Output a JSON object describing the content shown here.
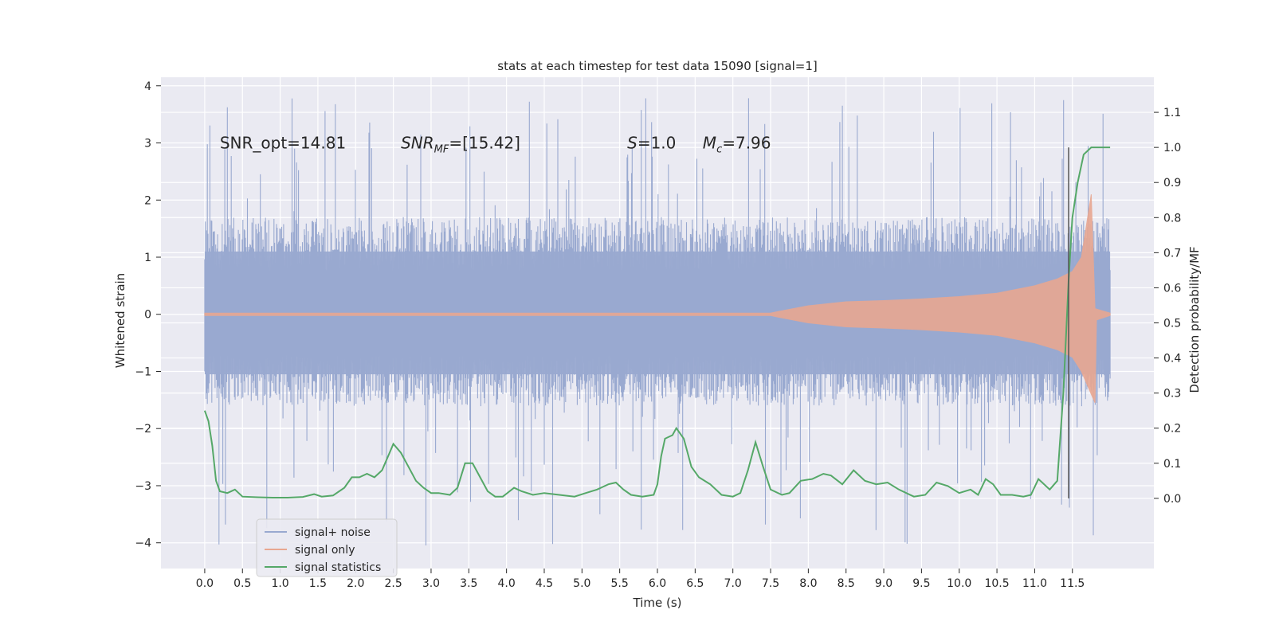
{
  "chart_data": {
    "type": "line",
    "title": "stats at each timestep for test data 15090 [signal=1]",
    "xlabel": "Time (s)",
    "ylabel": "Whitened strain",
    "ylabel_right": "Detection probability/MF",
    "xlim": [
      -0.58,
      12.58
    ],
    "ylim": [
      -4.45,
      4.15
    ],
    "ylim_right": [
      -0.2,
      1.2
    ],
    "grid": true,
    "x_ticks": [
      0.0,
      0.5,
      1.0,
      1.5,
      2.0,
      2.5,
      3.0,
      3.5,
      4.0,
      4.5,
      5.0,
      5.5,
      6.0,
      6.5,
      7.0,
      7.5,
      8.0,
      8.5,
      9.0,
      9.5,
      10.0,
      10.5,
      11.0,
      11.5
    ],
    "x_tick_labels": [
      "0.0",
      "0.5",
      "1.0",
      "1.5",
      "2.0",
      "2.5",
      "3.0",
      "3.5",
      "4.0",
      "4.5",
      "5.0",
      "5.5",
      "6.0",
      "6.5",
      "7.0",
      "7.5",
      "8.0",
      "8.5",
      "9.0",
      "9.5",
      "10.0",
      "10.5",
      "11.0",
      "11.5"
    ],
    "y_ticks": [
      -4,
      -3,
      -2,
      -1,
      0,
      1,
      2,
      3,
      4
    ],
    "y_tick_labels": [
      "−4",
      "−3",
      "−2",
      "−1",
      "0",
      "1",
      "2",
      "3",
      "4"
    ],
    "y2_ticks": [
      0.0,
      0.1,
      0.2,
      0.3,
      0.4,
      0.5,
      0.6,
      0.7,
      0.8,
      0.9,
      1.0,
      1.1
    ],
    "y2_tick_labels": [
      "0.0",
      "0.1",
      "0.2",
      "0.3",
      "0.4",
      "0.5",
      "0.6",
      "0.7",
      "0.8",
      "0.9",
      "1.0",
      "1.1"
    ],
    "annotations": [
      {
        "text": "SNR_opt=14.81",
        "x": 0.2,
        "y": 3.0
      },
      {
        "text": "SNR",
        "sub": "MF",
        "suffix": "=[15.42]",
        "x": 2.6,
        "y": 3.0
      },
      {
        "text": "S",
        "suffix": "=1.0",
        "x": 5.6,
        "y": 3.0
      },
      {
        "text": "M",
        "sub": "c",
        "suffix": "=7.96",
        "x": 6.6,
        "y": 3.0
      }
    ],
    "vline": {
      "x": 11.45,
      "y_range": [
        0.0,
        1.0
      ]
    },
    "series": [
      {
        "name": "signal+ noise",
        "axis": "left",
        "color": "#99a9d0",
        "description": "whitened strain noise spanning 0 to 12 s",
        "t_start": 0.0,
        "t_end": 12.0,
        "envelope": {
          "typical_max": 1.7,
          "typical_min": -1.6,
          "peak_max": 3.8,
          "peak_min": -4.1
        }
      },
      {
        "name": "signal only",
        "axis": "left",
        "color": "#e8a791",
        "t_start": 0.0,
        "t_end": 12.0,
        "envelope_points": [
          [
            0.0,
            0.02
          ],
          [
            7.5,
            0.02
          ],
          [
            7.6,
            0.05
          ],
          [
            8.0,
            0.15
          ],
          [
            8.5,
            0.22
          ],
          [
            9.0,
            0.24
          ],
          [
            9.5,
            0.27
          ],
          [
            10.0,
            0.31
          ],
          [
            10.5,
            0.37
          ],
          [
            11.0,
            0.5
          ],
          [
            11.3,
            0.62
          ],
          [
            11.5,
            0.75
          ],
          [
            11.62,
            1.0
          ],
          [
            11.75,
            2.1
          ],
          [
            11.8,
            0.1
          ],
          [
            12.0,
            0.02
          ]
        ],
        "envelope_points_neg": [
          [
            0.0,
            -0.02
          ],
          [
            7.5,
            -0.02
          ],
          [
            7.6,
            -0.05
          ],
          [
            8.0,
            -0.15
          ],
          [
            8.5,
            -0.22
          ],
          [
            9.0,
            -0.24
          ],
          [
            9.5,
            -0.27
          ],
          [
            10.0,
            -0.31
          ],
          [
            10.5,
            -0.37
          ],
          [
            11.0,
            -0.5
          ],
          [
            11.3,
            -0.62
          ],
          [
            11.5,
            -0.75
          ],
          [
            11.62,
            -1.0
          ],
          [
            11.8,
            -1.55
          ],
          [
            11.82,
            -0.1
          ],
          [
            12.0,
            -0.02
          ]
        ]
      },
      {
        "name": "signal statistics",
        "axis": "right",
        "color": "#55a868",
        "points": [
          [
            0.0,
            0.25
          ],
          [
            0.05,
            0.22
          ],
          [
            0.1,
            0.15
          ],
          [
            0.15,
            0.05
          ],
          [
            0.2,
            0.02
          ],
          [
            0.3,
            0.015
          ],
          [
            0.4,
            0.025
          ],
          [
            0.5,
            0.005
          ],
          [
            0.7,
            0.003
          ],
          [
            0.9,
            0.002
          ],
          [
            1.1,
            0.002
          ],
          [
            1.3,
            0.004
          ],
          [
            1.45,
            0.012
          ],
          [
            1.55,
            0.005
          ],
          [
            1.7,
            0.008
          ],
          [
            1.85,
            0.03
          ],
          [
            1.95,
            0.06
          ],
          [
            2.05,
            0.06
          ],
          [
            2.15,
            0.07
          ],
          [
            2.25,
            0.06
          ],
          [
            2.35,
            0.08
          ],
          [
            2.45,
            0.13
          ],
          [
            2.5,
            0.155
          ],
          [
            2.6,
            0.13
          ],
          [
            2.7,
            0.09
          ],
          [
            2.8,
            0.05
          ],
          [
            2.9,
            0.03
          ],
          [
            3.0,
            0.015
          ],
          [
            3.1,
            0.015
          ],
          [
            3.25,
            0.01
          ],
          [
            3.35,
            0.03
          ],
          [
            3.45,
            0.1
          ],
          [
            3.55,
            0.1
          ],
          [
            3.65,
            0.06
          ],
          [
            3.75,
            0.02
          ],
          [
            3.85,
            0.005
          ],
          [
            3.95,
            0.005
          ],
          [
            4.1,
            0.03
          ],
          [
            4.2,
            0.02
          ],
          [
            4.35,
            0.01
          ],
          [
            4.5,
            0.015
          ],
          [
            4.7,
            0.01
          ],
          [
            4.9,
            0.005
          ],
          [
            5.05,
            0.015
          ],
          [
            5.2,
            0.025
          ],
          [
            5.35,
            0.04
          ],
          [
            5.45,
            0.045
          ],
          [
            5.55,
            0.025
          ],
          [
            5.65,
            0.01
          ],
          [
            5.8,
            0.005
          ],
          [
            5.95,
            0.01
          ],
          [
            6.0,
            0.04
          ],
          [
            6.05,
            0.12
          ],
          [
            6.1,
            0.17
          ],
          [
            6.2,
            0.18
          ],
          [
            6.25,
            0.2
          ],
          [
            6.35,
            0.17
          ],
          [
            6.45,
            0.09
          ],
          [
            6.55,
            0.06
          ],
          [
            6.7,
            0.04
          ],
          [
            6.85,
            0.01
          ],
          [
            7.0,
            0.005
          ],
          [
            7.1,
            0.015
          ],
          [
            7.2,
            0.08
          ],
          [
            7.3,
            0.16
          ],
          [
            7.4,
            0.09
          ],
          [
            7.5,
            0.025
          ],
          [
            7.65,
            0.01
          ],
          [
            7.75,
            0.015
          ],
          [
            7.9,
            0.05
          ],
          [
            8.05,
            0.055
          ],
          [
            8.2,
            0.07
          ],
          [
            8.3,
            0.065
          ],
          [
            8.45,
            0.04
          ],
          [
            8.6,
            0.08
          ],
          [
            8.75,
            0.05
          ],
          [
            8.9,
            0.04
          ],
          [
            9.05,
            0.045
          ],
          [
            9.2,
            0.025
          ],
          [
            9.4,
            0.005
          ],
          [
            9.55,
            0.01
          ],
          [
            9.7,
            0.045
          ],
          [
            9.85,
            0.035
          ],
          [
            10.0,
            0.015
          ],
          [
            10.15,
            0.025
          ],
          [
            10.25,
            0.01
          ],
          [
            10.35,
            0.055
          ],
          [
            10.45,
            0.04
          ],
          [
            10.55,
            0.01
          ],
          [
            10.7,
            0.01
          ],
          [
            10.85,
            0.005
          ],
          [
            10.95,
            0.01
          ],
          [
            11.05,
            0.055
          ],
          [
            11.1,
            0.045
          ],
          [
            11.2,
            0.025
          ],
          [
            11.3,
            0.05
          ],
          [
            11.38,
            0.3
          ],
          [
            11.45,
            0.62
          ],
          [
            11.5,
            0.8
          ],
          [
            11.57,
            0.9
          ],
          [
            11.65,
            0.98
          ],
          [
            11.75,
            1.0
          ],
          [
            12.0,
            1.0
          ]
        ]
      }
    ],
    "legend": {
      "position": "lower-left",
      "entries": [
        "signal+ noise",
        "signal only",
        "signal statistics"
      ]
    }
  }
}
